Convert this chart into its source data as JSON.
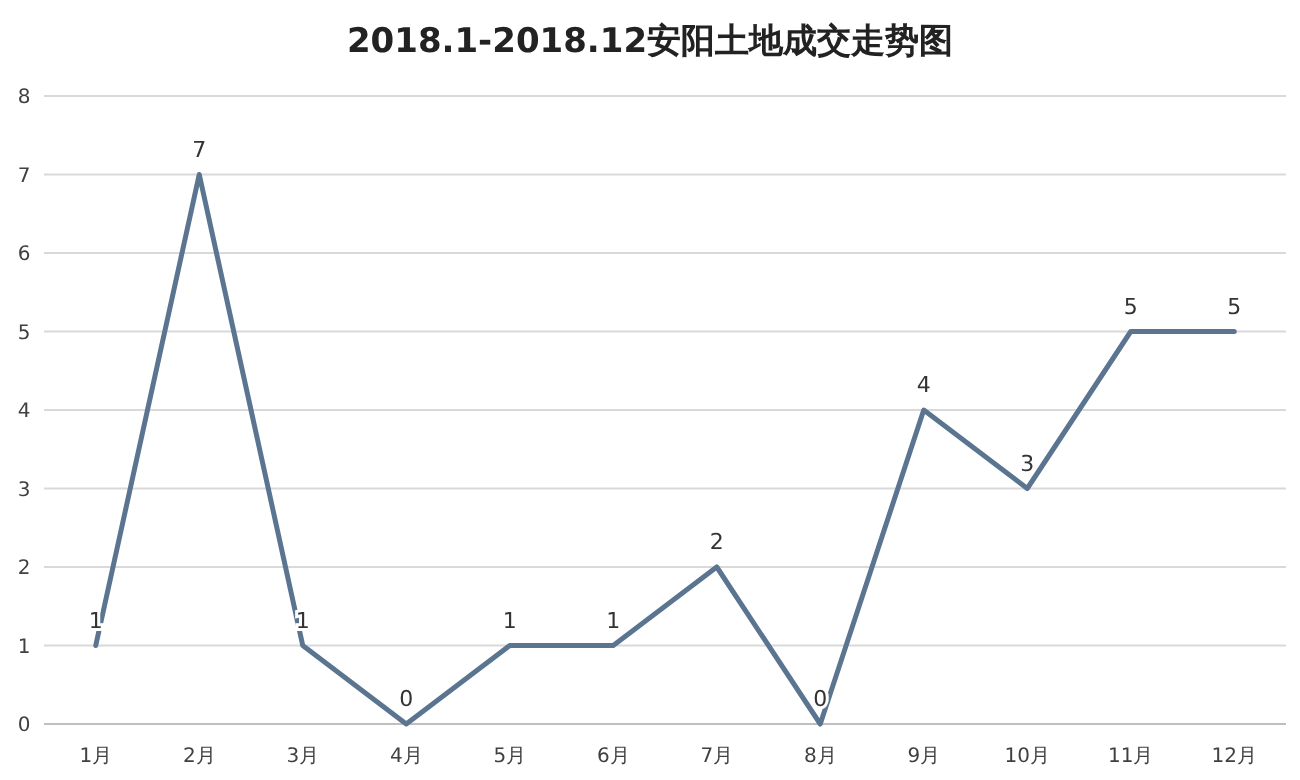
{
  "chart_data": {
    "type": "line",
    "title": "2018.1-2018.12安阳土地成交走势图",
    "categories": [
      "1月",
      "2月",
      "3月",
      "4月",
      "5月",
      "6月",
      "7月",
      "8月",
      "9月",
      "10月",
      "11月",
      "12月"
    ],
    "series": [
      {
        "color": "#5b7591",
        "values": [
          1,
          7,
          1,
          0,
          1,
          1,
          2,
          0,
          4,
          3,
          5,
          5
        ]
      }
    ],
    "ylim": [
      0,
      8
    ],
    "yticks": [
      0,
      1,
      2,
      3,
      4,
      5,
      6,
      7,
      8
    ],
    "grid": "y",
    "data_labels": true,
    "marker": "none",
    "line_style": "solid"
  }
}
